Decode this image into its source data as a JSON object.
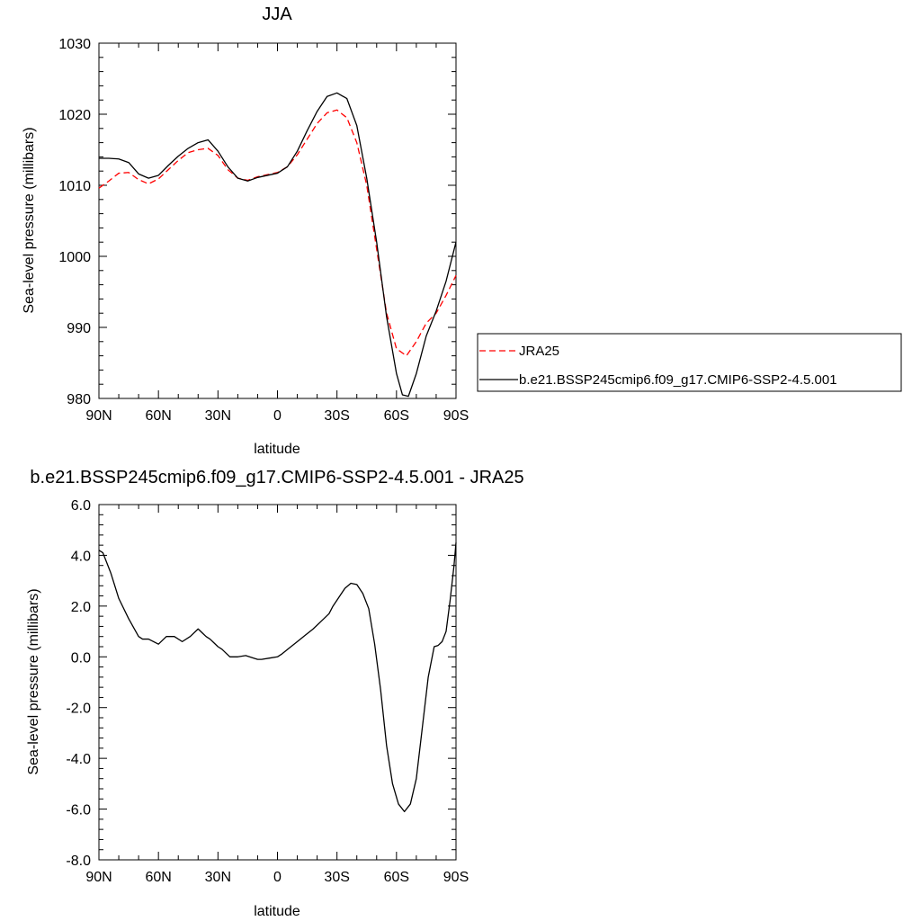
{
  "chart_data": [
    {
      "type": "line",
      "title": "JJA",
      "xlabel": "latitude",
      "ylabel": "Sea-level pressure (millibars)",
      "ylim": [
        980,
        1030
      ],
      "xlim": [
        90,
        -90
      ],
      "xtick_values": [
        90,
        60,
        30,
        0,
        -30,
        -60,
        -90
      ],
      "xtick_labels": [
        "90N",
        "60N",
        "30N",
        "0",
        "30S",
        "60S",
        "90S"
      ],
      "ytick_values": [
        980,
        990,
        1000,
        1010,
        1020,
        1030
      ],
      "ytick_labels": [
        "980",
        "990",
        "1000",
        "1010",
        "1020",
        "1030"
      ],
      "legend_position": "right",
      "series": [
        {
          "name": "JRA25",
          "color": "#ff0000",
          "dash": "dashed",
          "x": [
            90,
            85,
            80,
            75,
            70,
            65,
            60,
            55,
            50,
            45,
            40,
            35,
            30,
            25,
            20,
            15,
            10,
            5,
            0,
            -5,
            -10,
            -15,
            -20,
            -25,
            -30,
            -35,
            -40,
            -45,
            -50,
            -55,
            -60,
            -65,
            -70,
            -75,
            -80,
            -85,
            -90
          ],
          "y": [
            1009.6,
            1010.6,
            1011.7,
            1011.8,
            1010.8,
            1010.2,
            1010.9,
            1012.2,
            1013.5,
            1014.6,
            1015.0,
            1015.2,
            1014.2,
            1012.2,
            1011.0,
            1010.7,
            1011.2,
            1011.5,
            1011.8,
            1012.6,
            1014.3,
            1016.5,
            1018.7,
            1020.2,
            1020.6,
            1019.5,
            1016.0,
            1010.0,
            1001.0,
            992.0,
            987.0,
            986.0,
            988.0,
            990.6,
            992.0,
            994.5,
            997.3
          ]
        },
        {
          "name": "b.e21.BSSP245cmip6.f09_g17.CMIP6-SSP2-4.5.001",
          "color": "#000000",
          "dash": "solid",
          "x": [
            90,
            85,
            80,
            75,
            70,
            65,
            60,
            55,
            50,
            45,
            40,
            35,
            30,
            25,
            20,
            15,
            10,
            5,
            0,
            -5,
            -10,
            -15,
            -20,
            -25,
            -30,
            -35,
            -40,
            -45,
            -50,
            -55,
            -60,
            -63,
            -66,
            -70,
            -75,
            -80,
            -85,
            -90
          ],
          "y": [
            1013.8,
            1013.8,
            1013.7,
            1013.2,
            1011.6,
            1011.0,
            1011.4,
            1012.8,
            1014.1,
            1015.2,
            1016.0,
            1016.4,
            1014.8,
            1012.6,
            1011.0,
            1010.6,
            1011.1,
            1011.4,
            1011.7,
            1012.6,
            1014.8,
            1017.7,
            1020.4,
            1022.5,
            1023.0,
            1022.2,
            1018.4,
            1011.0,
            1002.0,
            991.5,
            983.5,
            980.5,
            980.3,
            983.5,
            988.8,
            992.3,
            996.5,
            1002.0
          ]
        }
      ]
    },
    {
      "type": "line",
      "title": "b.e21.BSSP245cmip6.f09_g17.CMIP6-SSP2-4.5.001 - JRA25",
      "xlabel": "latitude",
      "ylabel": "Sea-level pressure (millibars)",
      "ylim": [
        -8,
        6
      ],
      "xlim": [
        90,
        -90
      ],
      "xtick_values": [
        90,
        60,
        30,
        0,
        -30,
        -60,
        -90
      ],
      "xtick_labels": [
        "90N",
        "60N",
        "30N",
        "0",
        "30S",
        "60S",
        "90S"
      ],
      "ytick_values": [
        -8,
        -6,
        -4,
        -2,
        0,
        2,
        4,
        6
      ],
      "ytick_labels": [
        "-8.0",
        "-6.0",
        "-4.0",
        "-2.0",
        "0.0",
        "2.0",
        "4.0",
        "6.0"
      ],
      "series": [
        {
          "color": "#000000",
          "dash": "solid",
          "x": [
            90,
            88,
            86,
            84,
            80,
            75,
            70,
            68,
            65,
            60,
            56,
            52,
            48,
            44,
            40,
            38,
            36,
            34,
            32,
            30,
            28,
            26,
            24,
            20,
            16,
            12,
            10,
            8,
            4,
            0,
            -2,
            -6,
            -10,
            -14,
            -18,
            -22,
            -26,
            -28,
            -31,
            -34,
            -37,
            -40,
            -43,
            -46,
            -49,
            -52,
            -55,
            -58,
            -61,
            -64,
            -67,
            -70,
            -73,
            -76,
            -79,
            -81,
            -83,
            -85,
            -87,
            -89,
            -90
          ],
          "y": [
            4.2,
            4.1,
            3.7,
            3.3,
            2.3,
            1.5,
            0.8,
            0.7,
            0.7,
            0.5,
            0.8,
            0.8,
            0.6,
            0.8,
            1.1,
            0.95,
            0.8,
            0.7,
            0.55,
            0.4,
            0.3,
            0.15,
            0.0,
            0.0,
            0.05,
            -0.05,
            -0.1,
            -0.1,
            -0.05,
            0.0,
            0.1,
            0.35,
            0.6,
            0.85,
            1.1,
            1.4,
            1.7,
            2.0,
            2.35,
            2.7,
            2.9,
            2.85,
            2.5,
            1.9,
            0.5,
            -1.3,
            -3.5,
            -5.0,
            -5.8,
            -6.1,
            -5.8,
            -4.8,
            -2.8,
            -0.8,
            0.4,
            0.45,
            0.6,
            1.0,
            2.2,
            3.6,
            4.5
          ]
        }
      ]
    }
  ]
}
